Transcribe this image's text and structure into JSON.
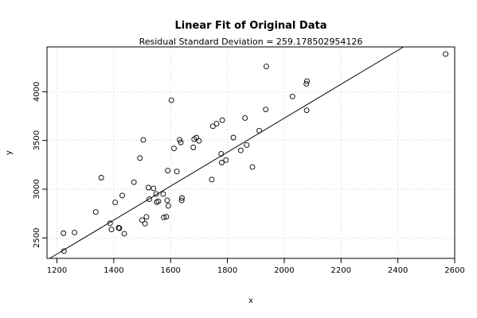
{
  "chart_data": {
    "type": "scatter",
    "title": "Linear Fit of Original Data",
    "subtitle": "Residual Standard Deviation =  259.178502954126",
    "xlabel": "x",
    "ylabel": "y",
    "xlim": [
      1165,
      2600
    ],
    "ylim": [
      2290,
      4460
    ],
    "xticks": [
      1200,
      1400,
      1600,
      1800,
      2000,
      2200,
      2400,
      2600
    ],
    "yticks": [
      2500,
      3000,
      3500,
      4000
    ],
    "grid": true,
    "fit_line": {
      "intercept": 243.18,
      "slope": 1.7426
    },
    "points": [
      {
        "x": 1223,
        "y": 2548
      },
      {
        "x": 1225,
        "y": 2365
      },
      {
        "x": 1262,
        "y": 2556
      },
      {
        "x": 1337,
        "y": 2767
      },
      {
        "x": 1356,
        "y": 3118
      },
      {
        "x": 1387,
        "y": 2650
      },
      {
        "x": 1392,
        "y": 2586
      },
      {
        "x": 1405,
        "y": 2865
      },
      {
        "x": 1417,
        "y": 2604
      },
      {
        "x": 1420,
        "y": 2600
      },
      {
        "x": 1430,
        "y": 2935
      },
      {
        "x": 1437,
        "y": 2543
      },
      {
        "x": 1471,
        "y": 3072
      },
      {
        "x": 1492,
        "y": 3319
      },
      {
        "x": 1500,
        "y": 2682
      },
      {
        "x": 1504,
        "y": 3506
      },
      {
        "x": 1510,
        "y": 2646
      },
      {
        "x": 1515,
        "y": 2716
      },
      {
        "x": 1522,
        "y": 3016
      },
      {
        "x": 1525,
        "y": 2897
      },
      {
        "x": 1540,
        "y": 3008
      },
      {
        "x": 1549,
        "y": 2951
      },
      {
        "x": 1551,
        "y": 2868
      },
      {
        "x": 1557,
        "y": 2876
      },
      {
        "x": 1574,
        "y": 2950
      },
      {
        "x": 1576,
        "y": 2711
      },
      {
        "x": 1585,
        "y": 2717
      },
      {
        "x": 1588,
        "y": 2886
      },
      {
        "x": 1590,
        "y": 3191
      },
      {
        "x": 1592,
        "y": 2829
      },
      {
        "x": 1603,
        "y": 3913
      },
      {
        "x": 1612,
        "y": 3418
      },
      {
        "x": 1622,
        "y": 3182
      },
      {
        "x": 1632,
        "y": 3506
      },
      {
        "x": 1636,
        "y": 3480
      },
      {
        "x": 1639,
        "y": 2885
      },
      {
        "x": 1640,
        "y": 2910
      },
      {
        "x": 1680,
        "y": 3429
      },
      {
        "x": 1683,
        "y": 3513
      },
      {
        "x": 1691,
        "y": 3529
      },
      {
        "x": 1700,
        "y": 3496
      },
      {
        "x": 1745,
        "y": 3099
      },
      {
        "x": 1749,
        "y": 3646
      },
      {
        "x": 1762,
        "y": 3672
      },
      {
        "x": 1778,
        "y": 3363
      },
      {
        "x": 1780,
        "y": 3273
      },
      {
        "x": 1782,
        "y": 3708
      },
      {
        "x": 1795,
        "y": 3299
      },
      {
        "x": 1821,
        "y": 3530
      },
      {
        "x": 1847,
        "y": 3398
      },
      {
        "x": 1862,
        "y": 3730
      },
      {
        "x": 1868,
        "y": 3453
      },
      {
        "x": 1888,
        "y": 3228
      },
      {
        "x": 1912,
        "y": 3601
      },
      {
        "x": 1935,
        "y": 3818
      },
      {
        "x": 1937,
        "y": 4260
      },
      {
        "x": 2029,
        "y": 3952
      },
      {
        "x": 2078,
        "y": 4081
      },
      {
        "x": 2079,
        "y": 3810
      },
      {
        "x": 2080,
        "y": 4109
      },
      {
        "x": 2568,
        "y": 4387
      }
    ]
  }
}
